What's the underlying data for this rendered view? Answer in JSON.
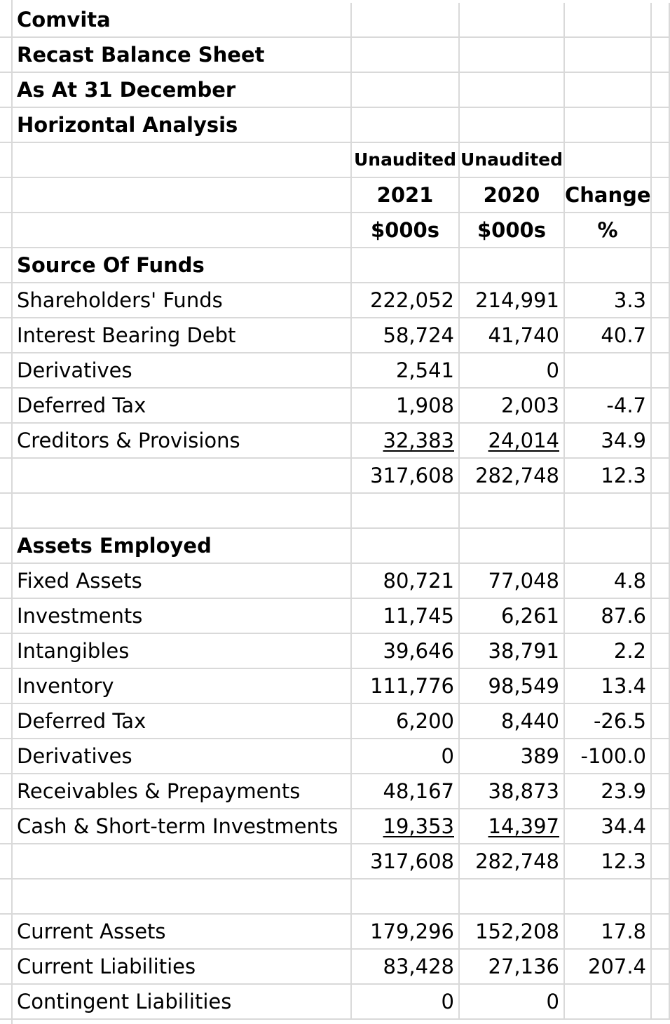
{
  "title_lines": [
    "Comvita",
    "Recast Balance Sheet",
    "As At 31 December",
    "Horizontal Analysis"
  ],
  "header": {
    "row1": [
      "Unaudited",
      "Unaudited",
      ""
    ],
    "row2": [
      "2021",
      "2020",
      "Change"
    ],
    "row3": [
      "$000s",
      "$000s",
      "%"
    ]
  },
  "sections": {
    "source": {
      "heading": "Source Of Funds",
      "rows": [
        {
          "label": "Shareholders' Funds",
          "y2021": "222,052",
          "y2020": "214,991",
          "change": "3.3"
        },
        {
          "label": "Interest Bearing Debt",
          "y2021": "58,724",
          "y2020": "41,740",
          "change": "40.7"
        },
        {
          "label": "Derivatives",
          "y2021": "2,541",
          "y2020": "0",
          "change": ""
        },
        {
          "label": "Deferred Tax",
          "y2021": "1,908",
          "y2020": "2,003",
          "change": "-4.7"
        },
        {
          "label": "Creditors & Provisions",
          "y2021": "32,383",
          "y2020": "24,014",
          "change": "34.9"
        }
      ],
      "total": {
        "y2021": "317,608",
        "y2020": "282,748",
        "change": "12.3"
      }
    },
    "assets": {
      "heading": "Assets Employed",
      "rows": [
        {
          "label": "Fixed Assets",
          "y2021": "80,721",
          "y2020": "77,048",
          "change": "4.8"
        },
        {
          "label": "Investments",
          "y2021": "11,745",
          "y2020": "6,261",
          "change": "87.6"
        },
        {
          "label": "Intangibles",
          "y2021": "39,646",
          "y2020": "38,791",
          "change": "2.2"
        },
        {
          "label": "Inventory",
          "y2021": "111,776",
          "y2020": "98,549",
          "change": "13.4"
        },
        {
          "label": "Deferred Tax",
          "y2021": "6,200",
          "y2020": "8,440",
          "change": "-26.5"
        },
        {
          "label": "Derivatives",
          "y2021": "0",
          "y2020": "389",
          "change": "-100.0"
        },
        {
          "label": "Receivables & Prepayments",
          "y2021": "48,167",
          "y2020": "38,873",
          "change": "23.9"
        },
        {
          "label": "Cash & Short-term Investments",
          "y2021": "19,353",
          "y2020": "14,397",
          "change": "34.4"
        }
      ],
      "total": {
        "y2021": "317,608",
        "y2020": "282,748",
        "change": "12.3"
      }
    },
    "other": {
      "rows": [
        {
          "label": "Current Assets",
          "y2021": "179,296",
          "y2020": "152,208",
          "change": "17.8"
        },
        {
          "label": "Current Liabilities",
          "y2021": "83,428",
          "y2020": "27,136",
          "change": "207.4"
        },
        {
          "label": "Contingent Liabilities",
          "y2021": "0",
          "y2020": "0",
          "change": ""
        }
      ]
    }
  }
}
